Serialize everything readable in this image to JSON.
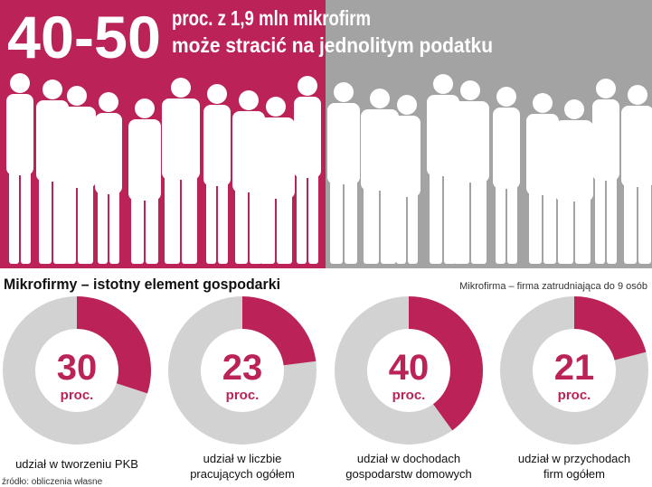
{
  "header": {
    "big_number": "40-50",
    "subtitle": [
      "proc. z 1,9 mln mikrofirm",
      "może stracić na jednolitym podatku"
    ]
  },
  "section_title": "Mikrofirmy – istotny element gospodarki",
  "note": "Mikrofirma – firma zatrudniająca do 9 osób",
  "unit": "proc.",
  "chart_data": [
    {
      "type": "pie",
      "values": [
        30
      ],
      "color": "#bb2358",
      "caption": [
        "udział w tworzeniu PKB"
      ]
    },
    {
      "type": "pie",
      "values": [
        23
      ],
      "color": "#bb2358",
      "caption": [
        "udział w liczbie",
        "pracujących ogółem"
      ]
    },
    {
      "type": "pie",
      "values": [
        40
      ],
      "color": "#bb2358",
      "caption": [
        "udział w dochodach",
        "gospodarstw domowych"
      ]
    },
    {
      "type": "pie",
      "values": [
        21
      ],
      "color": "#bb2358",
      "caption": [
        "udział w przychodach",
        "firm ogółem"
      ]
    }
  ],
  "source": "źródło: obliczenia własne"
}
